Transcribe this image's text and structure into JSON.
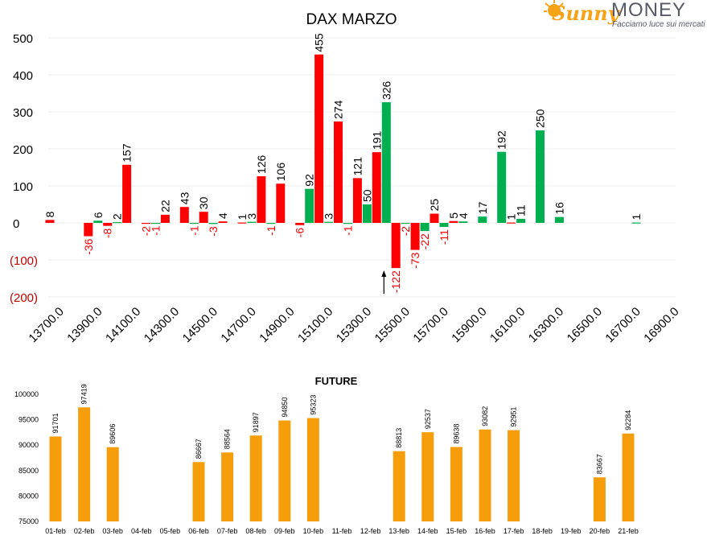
{
  "logo": {
    "brand_script": "Sunny",
    "brand_word": "MONEY",
    "tagline": "Facciamo luce sui mercati",
    "colors": {
      "script": "#f6a317",
      "word": "#555a66"
    }
  },
  "chart_data": [
    {
      "type": "bar",
      "title": "DAX MARZO",
      "xlabel": "",
      "ylabel": "",
      "ylim": [
        -200,
        500
      ],
      "y_ticks": [
        "500",
        "400",
        "300",
        "200",
        "100",
        "0",
        "(100)",
        "(200)"
      ],
      "x_tick_labels": [
        "13700.0",
        "13900.0",
        "14100.0",
        "14300.0",
        "14500.0",
        "14700.0",
        "14900.0",
        "15100.0",
        "15300.0",
        "15500.0",
        "15700.0",
        "15900.0",
        "16100.0",
        "16300.0",
        "16500.0",
        "16700.0",
        "16900.0"
      ],
      "strikes": [
        "13700",
        "13800",
        "13900",
        "14000",
        "14100",
        "14200",
        "14300",
        "14400",
        "14500",
        "14600",
        "14700",
        "14800",
        "14900",
        "15000",
        "15100",
        "15200",
        "15300",
        "15400",
        "15500",
        "15600",
        "15700",
        "15800",
        "15900",
        "16000",
        "16100",
        "16200",
        "16300",
        "16400",
        "16500",
        "16600",
        "16700",
        "16800",
        "16900"
      ],
      "series": [
        {
          "color": "#ff0000",
          "values": [
            8,
            null,
            -36,
            -8,
            157,
            -2,
            22,
            43,
            30,
            4,
            1,
            126,
            106,
            -6,
            455,
            274,
            121,
            191,
            -122,
            -73,
            25,
            5,
            null,
            null,
            1,
            null,
            null,
            null,
            null,
            null,
            null,
            null,
            null
          ]
        },
        {
          "color": "#00b050",
          "values": [
            null,
            null,
            6,
            2,
            null,
            -1,
            null,
            -1,
            -3,
            null,
            3,
            -1,
            null,
            92,
            3,
            -1,
            50,
            326,
            -2,
            -22,
            -11,
            4,
            17,
            192,
            11,
            250,
            16,
            null,
            null,
            null,
            1,
            null,
            null
          ]
        }
      ],
      "grid": true,
      "annotation": {
        "type": "arrow",
        "at_strike": "15400"
      },
      "colors": {
        "positive_label": "#000000",
        "negative_label": "#ff0000",
        "grid": "#eeeeee"
      }
    },
    {
      "type": "bar",
      "title": "FUTURE",
      "xlabel": "",
      "ylabel": "",
      "ylim": [
        75000,
        100000
      ],
      "y_ticks": [
        "100000",
        "95000",
        "90000",
        "85000",
        "80000",
        "75000"
      ],
      "categories": [
        "01-feb",
        "02-feb",
        "03-feb",
        "04-feb",
        "05-feb",
        "06-feb",
        "07-feb",
        "08-feb",
        "09-feb",
        "10-feb",
        "11-feb",
        "12-feb",
        "13-feb",
        "14-feb",
        "15-feb",
        "16-feb",
        "17-feb",
        "18-feb",
        "19-feb",
        "20-feb",
        "21-feb"
      ],
      "values": [
        91701,
        97419,
        89606,
        null,
        null,
        86667,
        88564,
        91897,
        94850,
        95323,
        null,
        null,
        88813,
        92537,
        89638,
        93082,
        92951,
        null,
        null,
        83667,
        92284
      ],
      "color": "#f59d0b",
      "grid": false
    }
  ]
}
